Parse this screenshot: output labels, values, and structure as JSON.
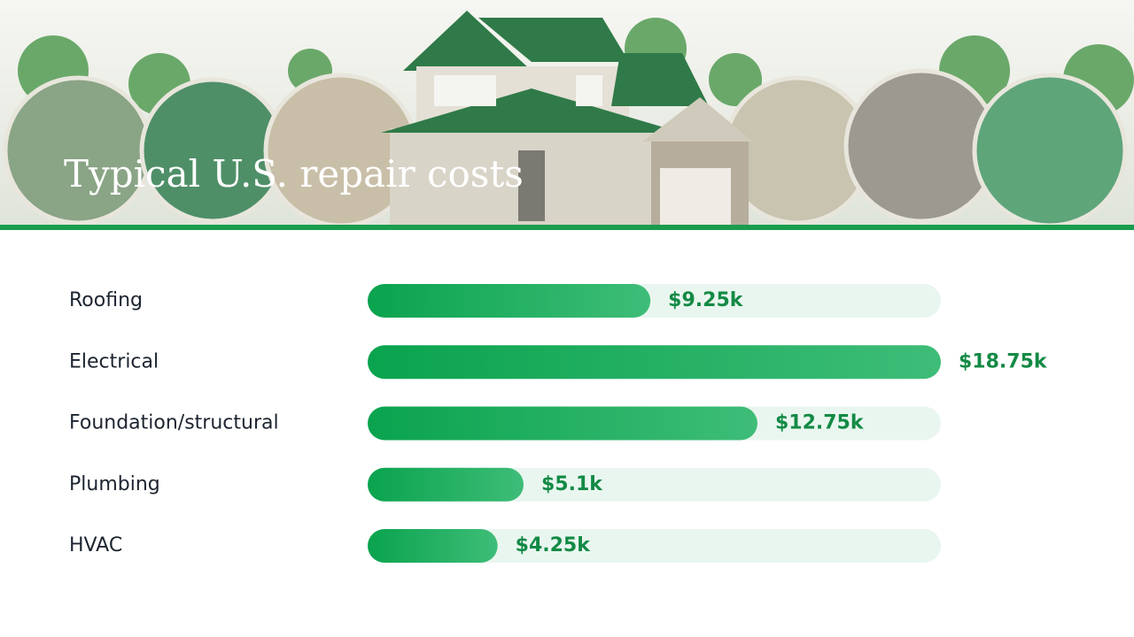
{
  "chart_data": {
    "type": "bar",
    "orientation": "horizontal",
    "title": "Typical U.S. repair costs",
    "categories": [
      "Roofing",
      "Electrical",
      "Foundation/structural",
      "Plumbing",
      "HVAC"
    ],
    "values": [
      9.25,
      18.75,
      12.75,
      5.1,
      4.25
    ],
    "value_labels": [
      "$9.25k",
      "$18.75k",
      "$12.75k",
      "$5.1k",
      "$4.25k"
    ],
    "color": "#12a653",
    "xlim": [
      0,
      18.75
    ]
  }
}
